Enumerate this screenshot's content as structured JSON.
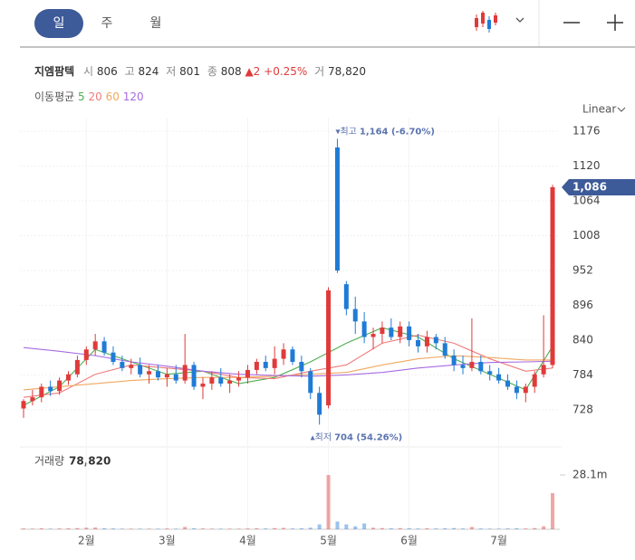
{
  "tabs": [
    "일",
    "주",
    "월"
  ],
  "scale_mode": "Linear",
  "info": {
    "name": "지엠팜텍",
    "open_label": "시",
    "open": "806",
    "high_label": "고",
    "high": "824",
    "low_label": "저",
    "low": "801",
    "close_label": "종",
    "close": "808",
    "change": "▲2",
    "change_pct": "+0.25%",
    "volume_label": "거",
    "volume": "78,820"
  },
  "ma_legend": {
    "label": "이동평균",
    "items": [
      "5",
      "20",
      "60",
      "120"
    ]
  },
  "chart_data": {
    "type": "candlestick",
    "up_color": "#e03a3a",
    "down_color": "#1f7bd6",
    "categories": [
      null,
      null,
      null,
      null,
      null,
      null,
      null,
      "2월",
      null,
      null,
      null,
      null,
      null,
      null,
      null,
      null,
      "3월",
      null,
      null,
      null,
      null,
      null,
      null,
      null,
      null,
      "4월",
      null,
      null,
      null,
      null,
      null,
      null,
      null,
      null,
      "5월",
      null,
      null,
      null,
      null,
      null,
      null,
      null,
      null,
      "6월",
      null,
      null,
      null,
      null,
      null,
      null,
      null,
      null,
      null,
      "7월",
      null,
      null,
      null,
      null,
      null,
      null
    ],
    "ohlc": [
      [
        730,
        745,
        715,
        742
      ],
      [
        742,
        760,
        735,
        748
      ],
      [
        748,
        770,
        740,
        765
      ],
      [
        765,
        775,
        750,
        758
      ],
      [
        758,
        780,
        752,
        775
      ],
      [
        775,
        790,
        768,
        785
      ],
      [
        785,
        815,
        780,
        808
      ],
      [
        808,
        830,
        800,
        825
      ],
      [
        825,
        850,
        815,
        838
      ],
      [
        838,
        845,
        815,
        820
      ],
      [
        820,
        830,
        800,
        805
      ],
      [
        805,
        815,
        790,
        795
      ],
      [
        795,
        810,
        785,
        800
      ],
      [
        800,
        812,
        780,
        785
      ],
      [
        785,
        800,
        770,
        790
      ],
      [
        790,
        800,
        775,
        780
      ],
      [
        780,
        795,
        765,
        785
      ],
      [
        785,
        800,
        770,
        775
      ],
      [
        775,
        850,
        770,
        800
      ],
      [
        800,
        805,
        760,
        765
      ],
      [
        765,
        780,
        745,
        770
      ],
      [
        770,
        790,
        760,
        780
      ],
      [
        780,
        795,
        765,
        770
      ],
      [
        770,
        785,
        755,
        775
      ],
      [
        775,
        790,
        765,
        780
      ],
      [
        780,
        800,
        770,
        792
      ],
      [
        792,
        810,
        785,
        805
      ],
      [
        805,
        815,
        790,
        795
      ],
      [
        795,
        830,
        785,
        810
      ],
      [
        810,
        835,
        800,
        825
      ],
      [
        825,
        830,
        800,
        805
      ],
      [
        805,
        815,
        780,
        790
      ],
      [
        790,
        795,
        745,
        755
      ],
      [
        755,
        765,
        704,
        720
      ],
      [
        735,
        925,
        730,
        920
      ],
      [
        1150,
        1164,
        948,
        952
      ],
      [
        930,
        935,
        880,
        890
      ],
      [
        890,
        910,
        850,
        870
      ],
      [
        870,
        885,
        835,
        845
      ],
      [
        845,
        860,
        825,
        850
      ],
      [
        850,
        870,
        835,
        860
      ],
      [
        860,
        875,
        840,
        845
      ],
      [
        845,
        870,
        835,
        862
      ],
      [
        862,
        870,
        830,
        840
      ],
      [
        840,
        850,
        820,
        830
      ],
      [
        830,
        855,
        820,
        845
      ],
      [
        845,
        850,
        825,
        835
      ],
      [
        835,
        845,
        810,
        815
      ],
      [
        815,
        825,
        790,
        800
      ],
      [
        800,
        815,
        785,
        795
      ],
      [
        795,
        875,
        790,
        805
      ],
      [
        805,
        815,
        785,
        790
      ],
      [
        790,
        800,
        775,
        785
      ],
      [
        785,
        795,
        770,
        775
      ],
      [
        775,
        785,
        760,
        765
      ],
      [
        765,
        775,
        745,
        755
      ],
      [
        755,
        770,
        740,
        765
      ],
      [
        765,
        790,
        755,
        785
      ],
      [
        785,
        880,
        780,
        800
      ],
      [
        800,
        1090,
        795,
        1086
      ]
    ],
    "ma": [
      {
        "name": "5",
        "color": "#4caf50",
        "x": [
          0,
          4,
          8,
          12,
          16,
          20,
          24,
          28,
          32,
          36,
          40,
          44,
          48,
          52,
          56,
          59
        ],
        "values": [
          735,
          765,
          825,
          805,
          785,
          790,
          770,
          780,
          805,
          835,
          860,
          845,
          810,
          785,
          760,
          830
        ]
      },
      {
        "name": "20",
        "color": "#f07b7b",
        "x": [
          0,
          4,
          8,
          12,
          16,
          20,
          24,
          28,
          32,
          36,
          40,
          44,
          48,
          52,
          56,
          59
        ],
        "values": [
          748,
          755,
          785,
          800,
          795,
          790,
          780,
          778,
          790,
          800,
          835,
          848,
          835,
          810,
          790,
          795
        ]
      },
      {
        "name": "60",
        "color": "#f0a860",
        "x": [
          0,
          4,
          8,
          12,
          16,
          20,
          24,
          28,
          32,
          36,
          40,
          44,
          48,
          52,
          56,
          59
        ],
        "values": [
          760,
          765,
          770,
          775,
          778,
          780,
          780,
          782,
          785,
          788,
          800,
          810,
          815,
          812,
          808,
          808
        ]
      },
      {
        "name": "120",
        "color": "#a86be0",
        "x": [
          0,
          4,
          8,
          12,
          16,
          20,
          24,
          28,
          32,
          36,
          40,
          44,
          48,
          52,
          56,
          59
        ],
        "values": [
          828,
          822,
          815,
          805,
          798,
          790,
          785,
          783,
          782,
          784,
          788,
          795,
          800,
          804,
          805,
          806
        ]
      }
    ],
    "ylim": [
      706,
      1198
    ],
    "yticks": [
      728,
      784,
      840,
      896,
      952,
      1008,
      1064,
      1120,
      1176
    ],
    "high_annotation": {
      "value": 1164,
      "label": "최고",
      "detail": "1,164 (-6.70%)"
    },
    "low_annotation": {
      "value": 704,
      "label": "최저",
      "detail": "704 (54.26%)"
    },
    "last_price": {
      "value": 1086,
      "label": "1,086"
    },
    "volume_title": "거래량",
    "volume_total": "78,820",
    "volume": [
      0.4,
      0.3,
      0.5,
      0.3,
      0.4,
      0.5,
      0.6,
      0.8,
      0.9,
      0.5,
      0.4,
      0.3,
      0.3,
      0.3,
      0.3,
      0.3,
      0.4,
      0.3,
      1.2,
      0.5,
      0.4,
      0.3,
      0.3,
      0.3,
      0.3,
      0.4,
      0.5,
      0.4,
      0.6,
      0.7,
      0.4,
      0.5,
      0.8,
      2.5,
      28.1,
      4,
      2.5,
      1.5,
      3,
      0.8,
      0.6,
      0.5,
      0.6,
      0.5,
      0.4,
      0.5,
      0.4,
      0.5,
      0.6,
      0.4,
      1.2,
      0.4,
      0.3,
      0.3,
      0.4,
      0.5,
      0.4,
      0.6,
      1.5,
      18.7
    ],
    "volume_ylim": [
      0,
      42.15
    ],
    "volume_ticks": [
      {
        "value": 28.1,
        "label": "28.1m"
      }
    ]
  }
}
